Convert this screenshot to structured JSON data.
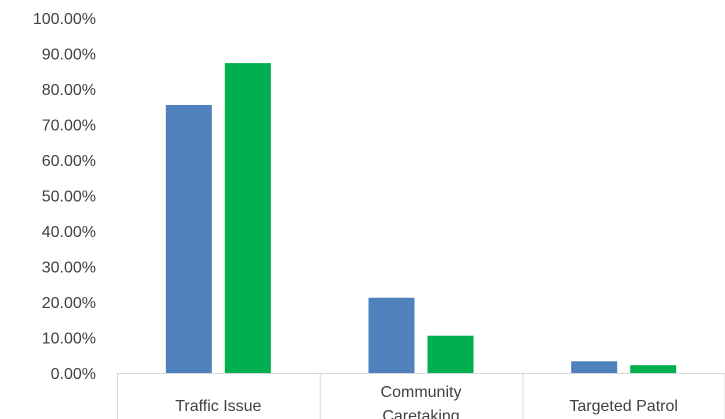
{
  "chart_data": {
    "type": "bar",
    "title": "",
    "xlabel": "",
    "ylabel": "",
    "categories": [
      [
        "Traffic Issue"
      ],
      [
        "Community",
        "Caretaking"
      ],
      [
        "Targeted Patrol"
      ]
    ],
    "series": [
      {
        "color": "#4F81BD",
        "values": [
          75.5,
          21.2,
          3.3
        ]
      },
      {
        "color": "#00B050",
        "values": [
          87.3,
          10.5,
          2.2
        ]
      }
    ],
    "ylim": [
      0,
      100
    ],
    "yticks": [
      0,
      10,
      20,
      30,
      40,
      50,
      60,
      70,
      80,
      90,
      100
    ],
    "ytick_labels": [
      "0.00%",
      "10.00%",
      "20.00%",
      "30.00%",
      "40.00%",
      "50.00%",
      "60.00%",
      "70.00%",
      "80.00%",
      "90.00%",
      "100.00%"
    ],
    "grid": false,
    "legend": "none"
  }
}
